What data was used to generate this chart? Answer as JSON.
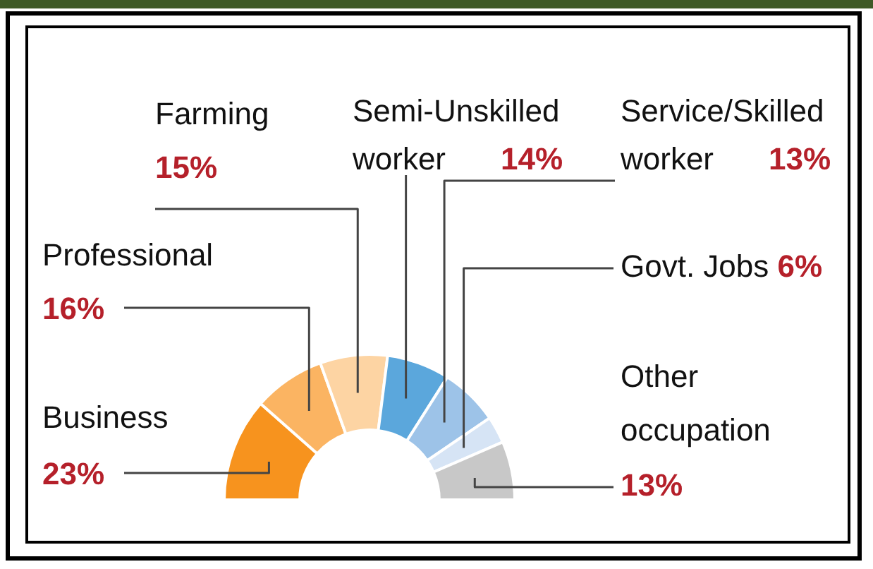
{
  "chart_data": {
    "type": "donut",
    "categories": [
      "Business",
      "Professional",
      "Farming",
      "Semi-Unskilled worker",
      "Service/Skilled worker",
      "Govt. Jobs",
      "Other occupation"
    ],
    "values": [
      23,
      16,
      15,
      14,
      13,
      6,
      13
    ],
    "value_labels": [
      "23%",
      "16%",
      "15%",
      "14%",
      "13%",
      "6%",
      "13%"
    ],
    "colors": [
      "#f7931e",
      "#fbb462",
      "#fdd4a3",
      "#5ba7dc",
      "#9dc3e8",
      "#d6e4f5",
      "#c8c8c8"
    ],
    "legend": false
  }
}
